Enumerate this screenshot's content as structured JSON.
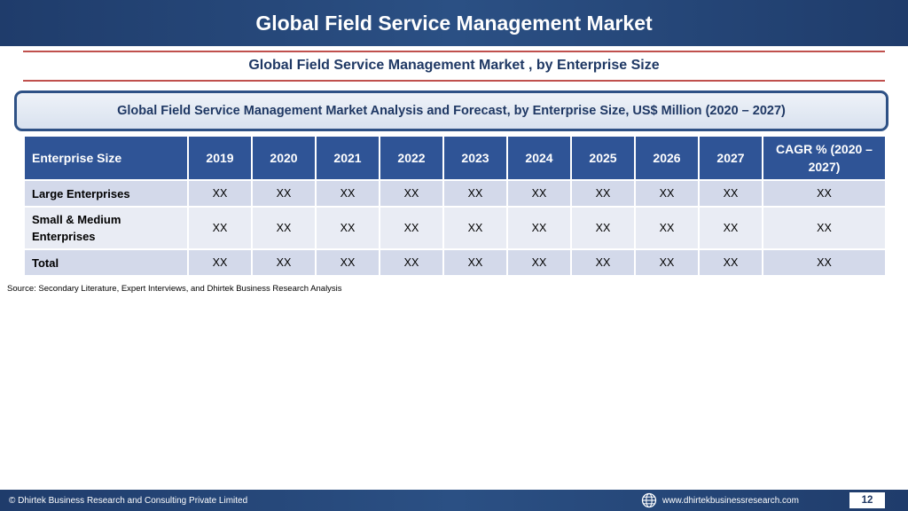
{
  "header": {
    "title": "Global Field Service Management Market"
  },
  "subtitle": "Global Field Service Management Market , by Enterprise Size",
  "banner": "Global Field Service Management Market  Analysis and Forecast, by Enterprise Size, US$ Million (2020 – 2027)",
  "table": {
    "columns": [
      "Enterprise Size",
      "2019",
      "2020",
      "2021",
      "2022",
      "2023",
      "2024",
      "2025",
      "2026",
      "2027",
      "CAGR % (2020 – 2027)"
    ],
    "rows": [
      {
        "label": "Large Enterprises",
        "values": [
          "XX",
          "XX",
          "XX",
          "XX",
          "XX",
          "XX",
          "XX",
          "XX",
          "XX",
          "XX"
        ]
      },
      {
        "label": "Small & Medium Enterprises",
        "values": [
          "XX",
          "XX",
          "XX",
          "XX",
          "XX",
          "XX",
          "XX",
          "XX",
          "XX",
          "XX"
        ]
      },
      {
        "label": "Total",
        "values": [
          "XX",
          "XX",
          "XX",
          "XX",
          "XX",
          "XX",
          "XX",
          "XX",
          "XX",
          "XX"
        ]
      }
    ]
  },
  "source": "Source: Secondary Literature, Expert Interviews, and Dhirtek Business Research Analysis",
  "footer": {
    "copyright": "© Dhirtek Business Research and Consulting Private Limited",
    "website_icon": "globe-icon",
    "website": "www.dhirtekbusinessresearch.com",
    "page_number": "12"
  },
  "colors": {
    "header_bar": "#2b5084",
    "table_header": "#2f5496",
    "row_odd": "#d3d9ea",
    "row_even": "#e9ecf4",
    "accent_rule": "#c0504d",
    "heading_text": "#1f3864"
  }
}
